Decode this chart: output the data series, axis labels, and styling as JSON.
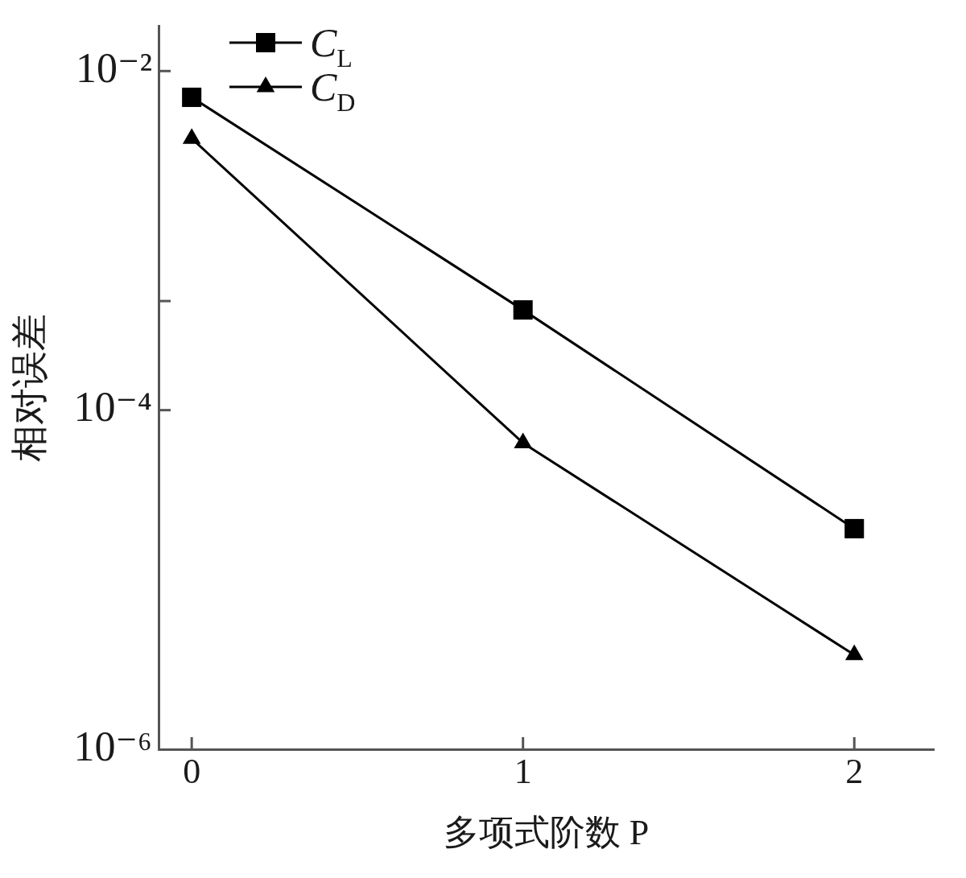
{
  "chart_data": {
    "type": "line",
    "xlabel": "多项式阶数 P",
    "ylabel": "相对误差",
    "x": [
      0,
      1,
      2
    ],
    "series": [
      {
        "name": "C$_{L}$",
        "color": "#000000",
        "marker": "square",
        "values": [
          0.007,
          0.00039,
          2e-05
        ]
      },
      {
        "name": "C$_{D}$",
        "color": "#000000",
        "marker": "triangle",
        "values": [
          0.004,
          6.4e-05,
          3.6e-06
        ]
      }
    ],
    "xlim": [
      -0.1,
      2.24
    ],
    "xticks": [
      0,
      1,
      2
    ],
    "ylim": [
      1e-06,
      0.0185
    ],
    "yticks": [
      {
        "value": 1e-06,
        "label": "10⁻⁶"
      },
      {
        "value": 0.0001,
        "label": "10⁻⁴"
      },
      {
        "value": 0.00044,
        "label": null
      },
      {
        "value": 0.01,
        "label": "10⁻²"
      }
    ],
    "log": "y",
    "grid": false,
    "legend": "top left"
  }
}
